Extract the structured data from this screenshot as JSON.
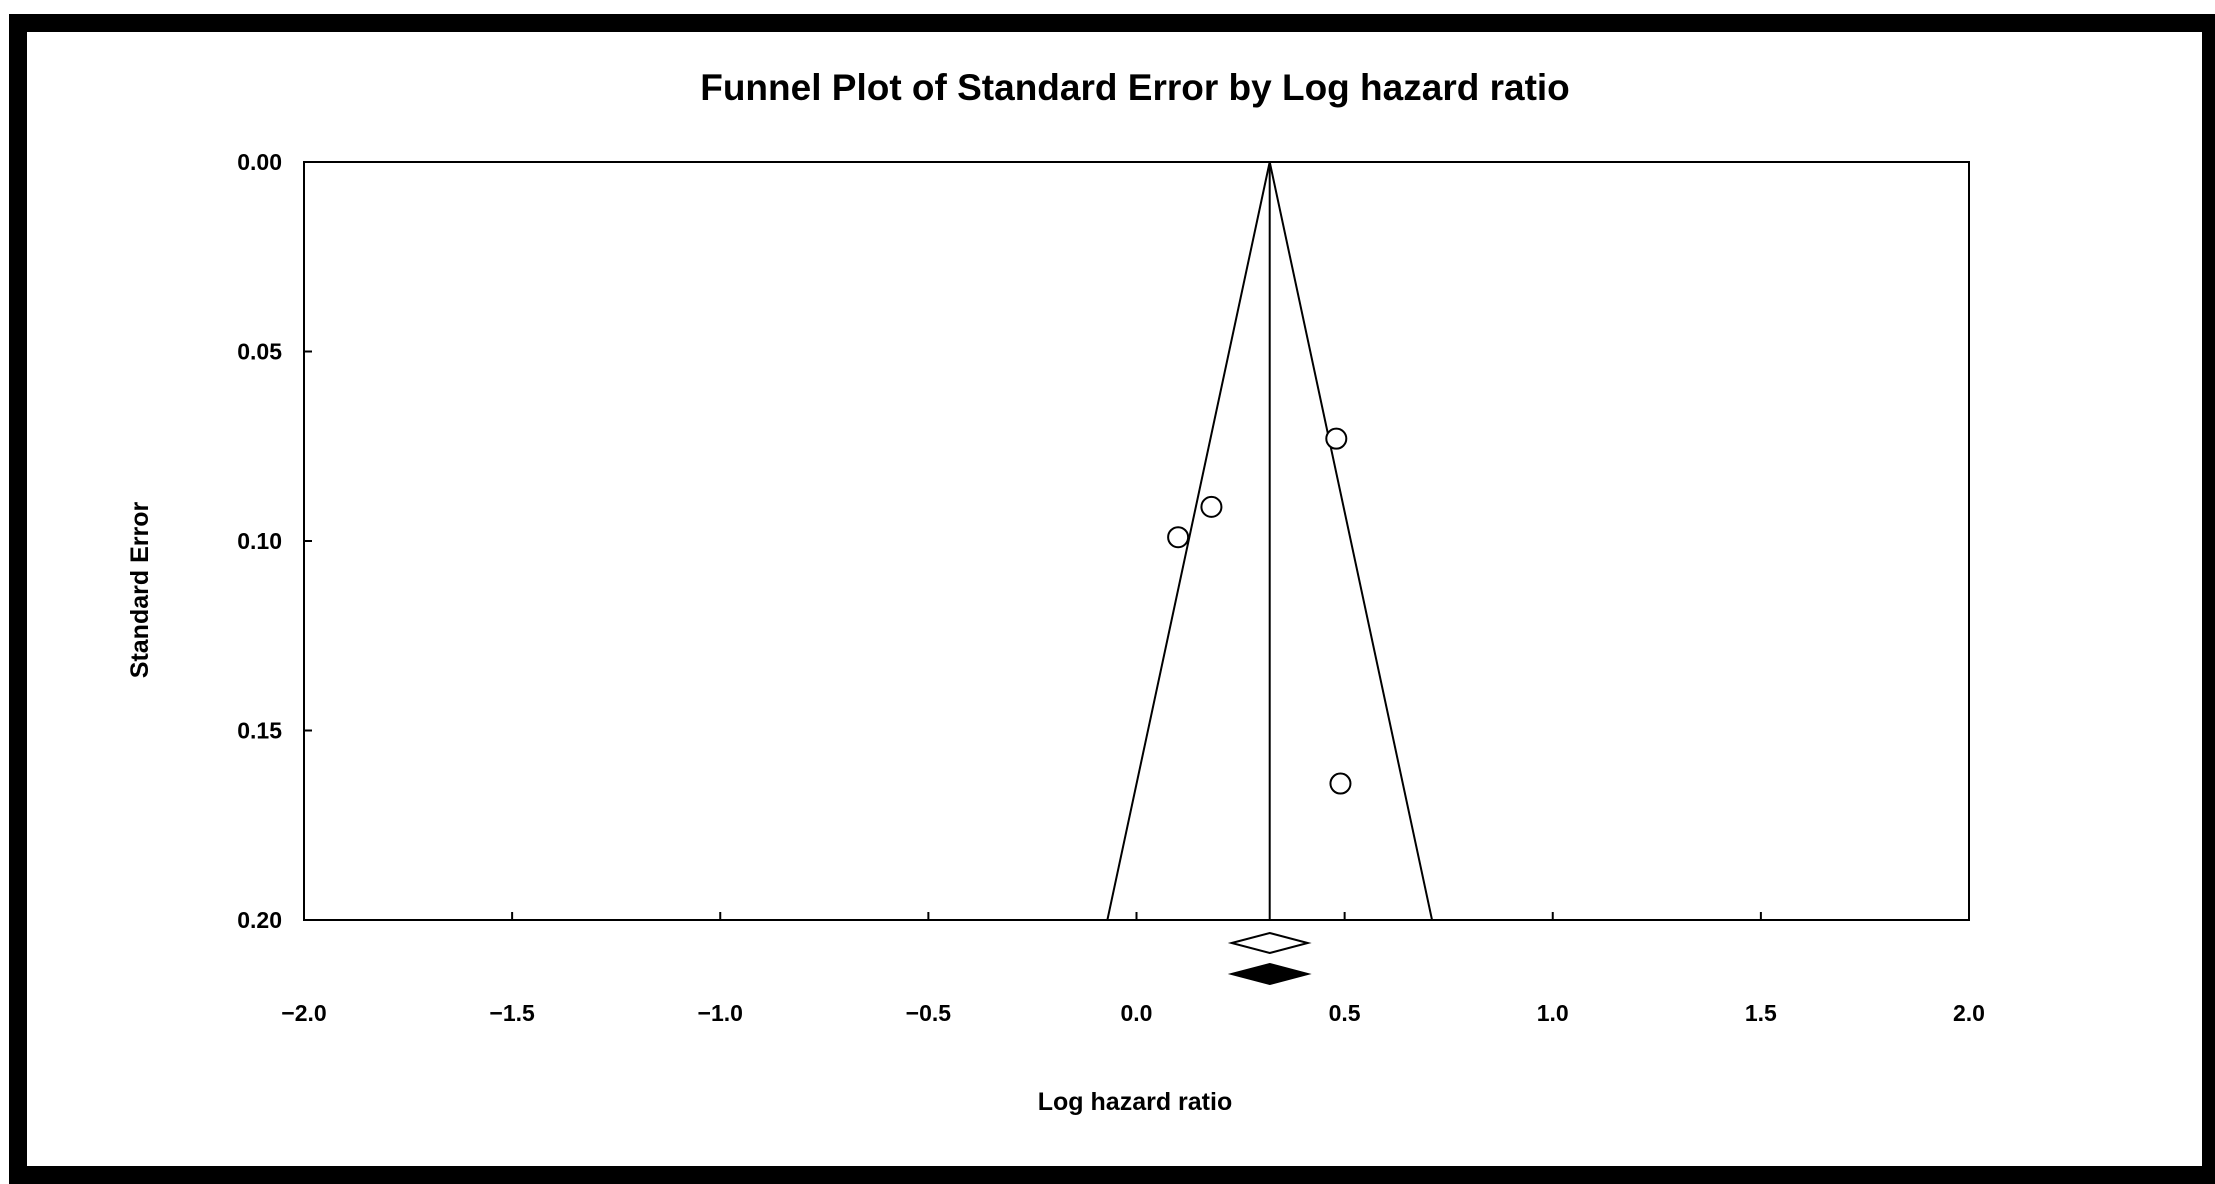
{
  "chart_data": {
    "type": "scatter",
    "title": "Funnel Plot of Standard Error by Log hazard ratio",
    "xlabel": "Log hazard ratio",
    "ylabel": "Standard Error",
    "xlim": [
      -2.0,
      2.0
    ],
    "ylim": [
      0.0,
      0.2
    ],
    "y_inverted": true,
    "x_ticks": [
      "−2.0",
      "−1.5",
      "−1.0",
      "−0.5",
      "0.0",
      "0.5",
      "1.0",
      "1.5",
      "2.0"
    ],
    "x_tick_values": [
      -2.0,
      -1.5,
      -1.0,
      -0.5,
      0.0,
      0.5,
      1.0,
      1.5,
      2.0
    ],
    "y_ticks": [
      "0.00",
      "0.05",
      "0.10",
      "0.15",
      "0.20"
    ],
    "y_tick_values": [
      0.0,
      0.05,
      0.1,
      0.15,
      0.2
    ],
    "pooled_estimate": 0.32,
    "funnel_bottom_se": 0.2,
    "funnel_bottom_x": [
      -0.07,
      0.71
    ],
    "points": [
      {
        "x": 0.48,
        "y": 0.073
      },
      {
        "x": 0.18,
        "y": 0.091
      },
      {
        "x": 0.1,
        "y": 0.099
      },
      {
        "x": 0.49,
        "y": 0.164
      }
    ],
    "diamonds": [
      {
        "x": 0.32,
        "style": "open"
      },
      {
        "x": 0.32,
        "style": "filled"
      }
    ],
    "grid": false
  }
}
